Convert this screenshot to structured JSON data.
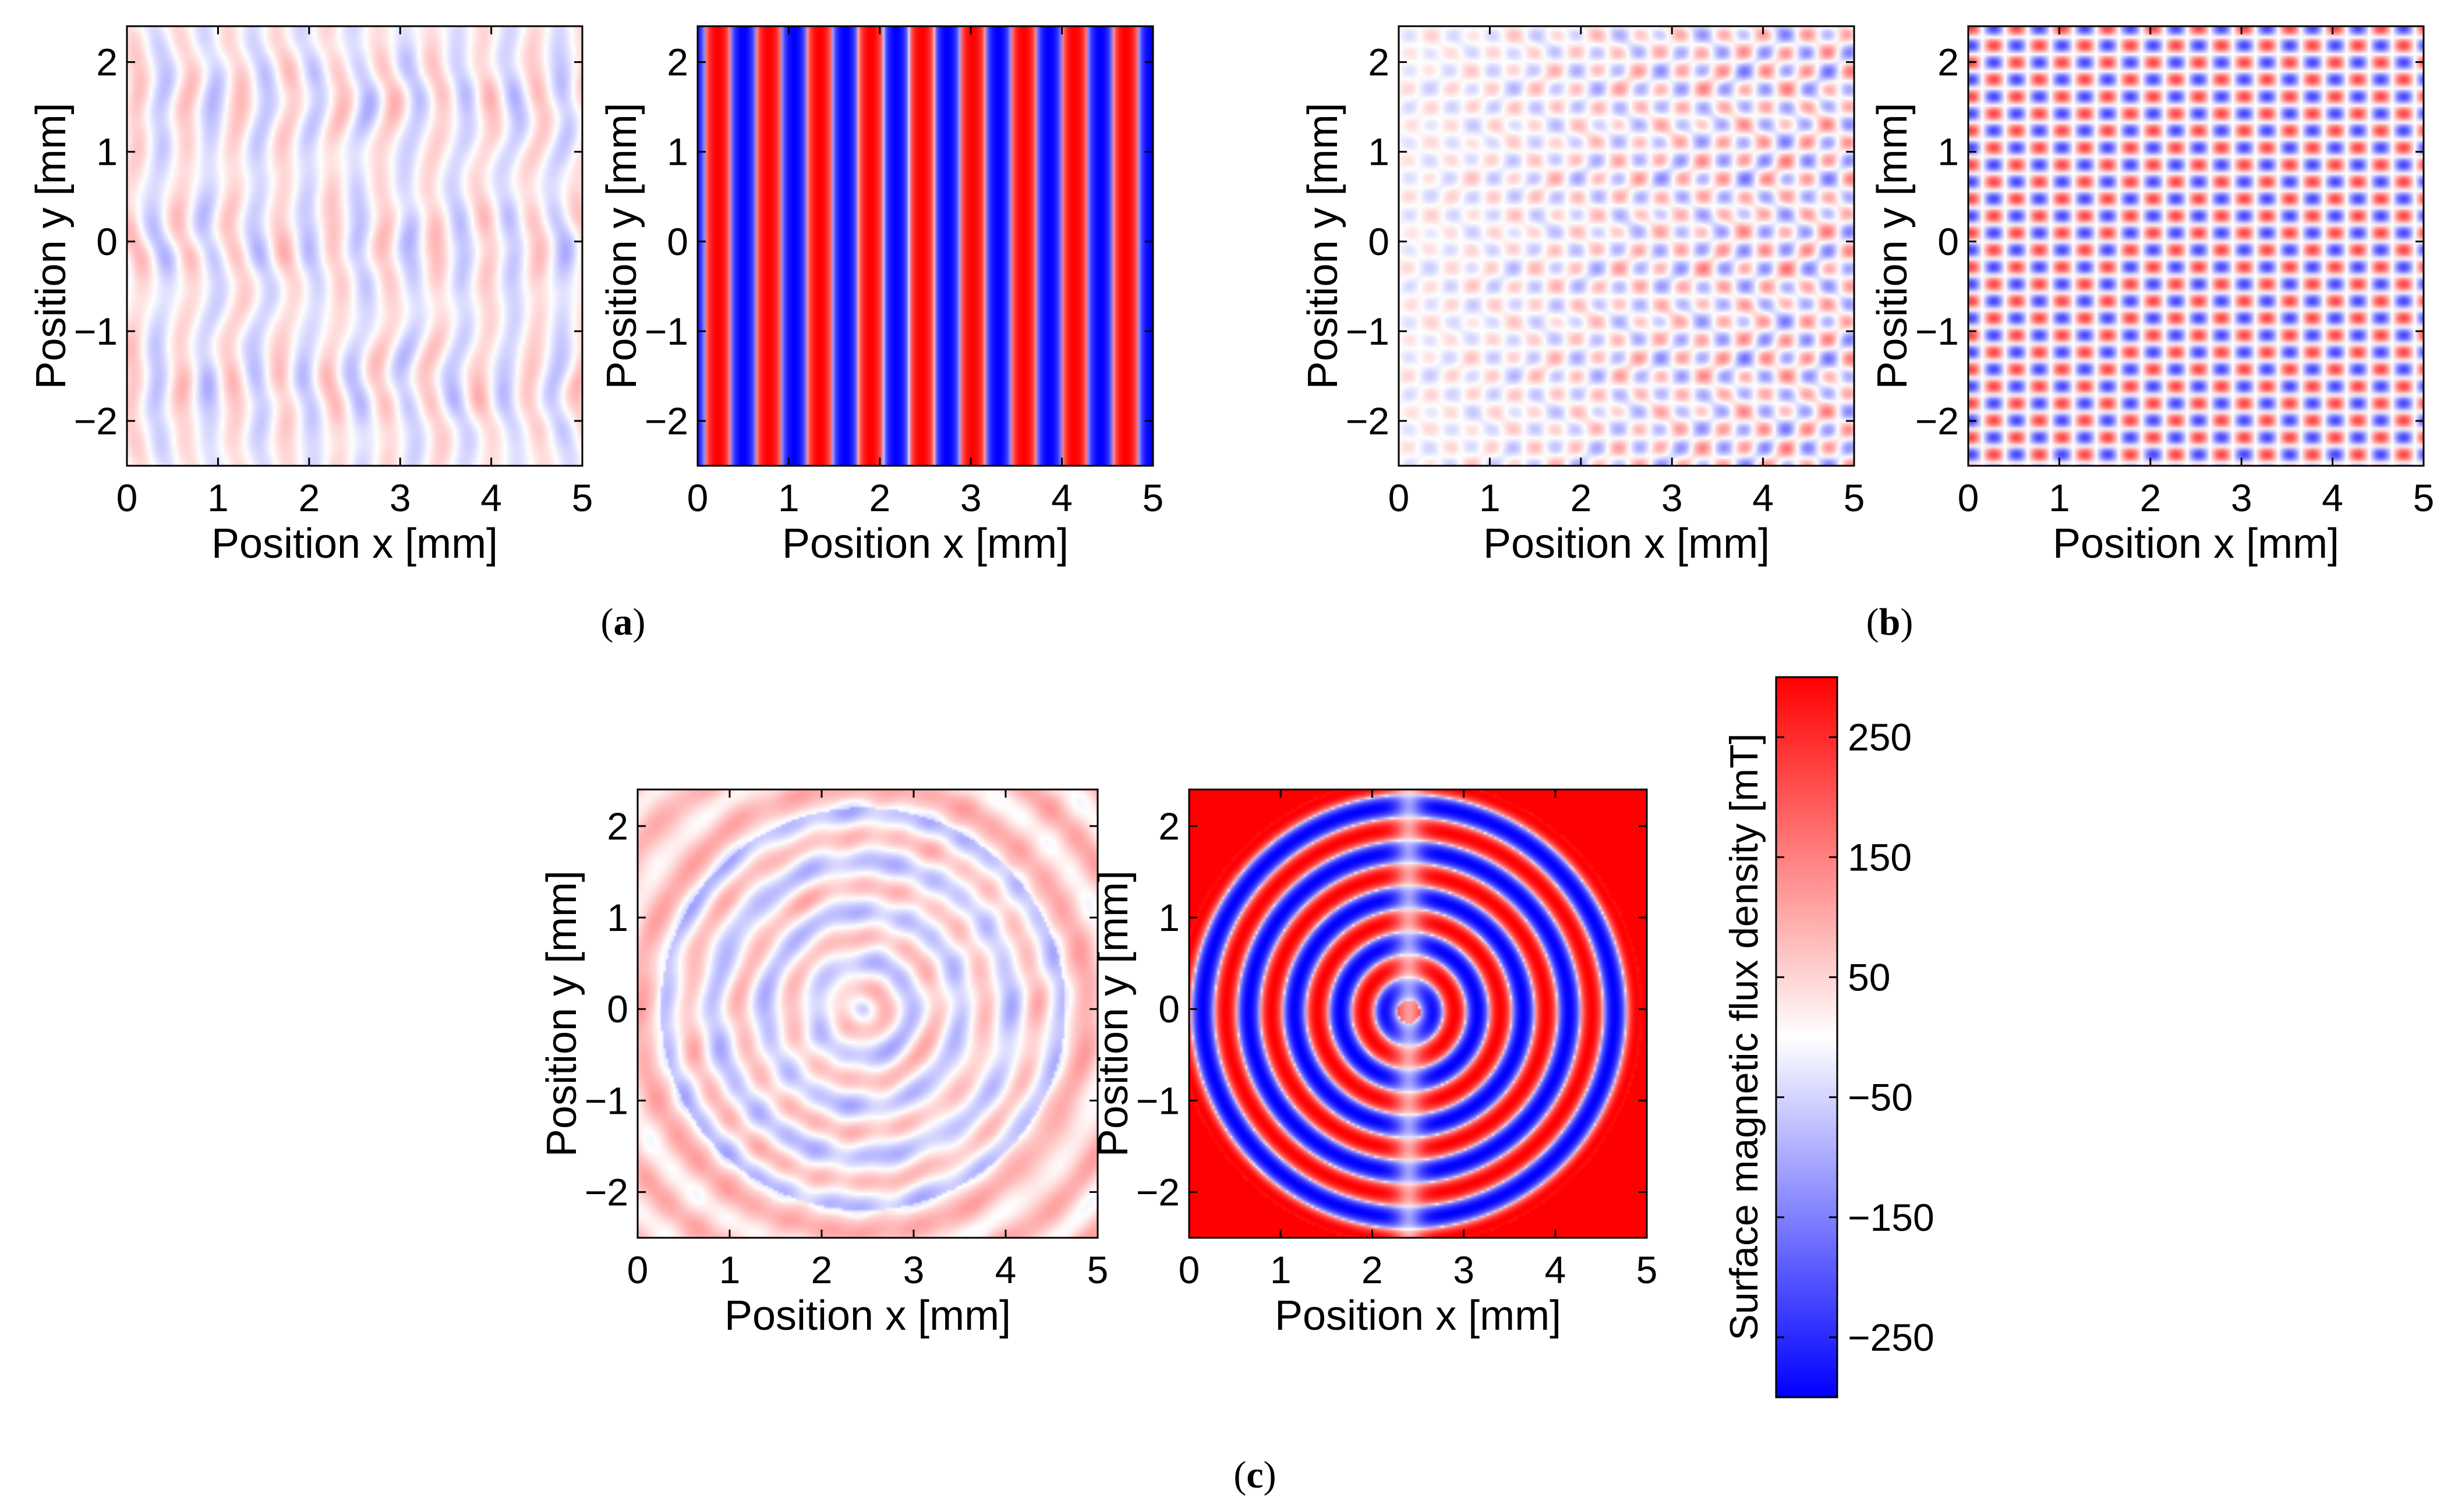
{
  "chart_data": [
    {
      "type": "heatmap",
      "name": "a-measured",
      "group": "a",
      "pattern": "stripes-measured",
      "xlabel": "Position x [mm]",
      "ylabel": "Position y [mm]",
      "xlim": [
        0,
        5
      ],
      "ylim": [
        -2.5,
        2.4
      ],
      "xticks": [
        0,
        1,
        2,
        3,
        4,
        5
      ],
      "yticks": [
        -2,
        -1,
        0,
        1,
        2
      ],
      "amplitude_mT": 90
    },
    {
      "type": "heatmap",
      "name": "a-simulated",
      "group": "a",
      "pattern": "stripes-ideal",
      "xlabel": "Position x [mm]",
      "ylabel": "Position y [mm]",
      "xlim": [
        0,
        5
      ],
      "ylim": [
        -2.5,
        2.4
      ],
      "xticks": [
        0,
        1,
        2,
        3,
        4,
        5
      ],
      "yticks": [
        -2,
        -1,
        0,
        1,
        2
      ],
      "amplitude_mT": 300
    },
    {
      "type": "heatmap",
      "name": "b-measured",
      "group": "b",
      "pattern": "checker-measured",
      "xlabel": "Position x [mm]",
      "ylabel": "Position y [mm]",
      "xlim": [
        0,
        5
      ],
      "ylim": [
        -2.5,
        2.4
      ],
      "xticks": [
        0,
        1,
        2,
        3,
        4,
        5
      ],
      "yticks": [
        -2,
        -1,
        0,
        1,
        2
      ],
      "amplitude_mT": 150
    },
    {
      "type": "heatmap",
      "name": "b-simulated",
      "group": "b",
      "pattern": "checker-ideal",
      "xlabel": "Position x [mm]",
      "ylabel": "Position y [mm]",
      "xlim": [
        0,
        5
      ],
      "ylim": [
        -2.5,
        2.4
      ],
      "xticks": [
        0,
        1,
        2,
        3,
        4,
        5
      ],
      "yticks": [
        -2,
        -1,
        0,
        1,
        2
      ],
      "amplitude_mT": 220
    },
    {
      "type": "heatmap",
      "name": "c-measured",
      "group": "c",
      "pattern": "rings-measured",
      "xlabel": "Position x [mm]",
      "ylabel": "Position y [mm]",
      "xlim": [
        0,
        5
      ],
      "ylim": [
        -2.5,
        2.4
      ],
      "xticks": [
        0,
        1,
        2,
        3,
        4,
        5
      ],
      "yticks": [
        -2,
        -1,
        0,
        1,
        2
      ],
      "amplitude_mT": 100
    },
    {
      "type": "heatmap",
      "name": "c-simulated",
      "group": "c",
      "pattern": "rings-ideal",
      "xlabel": "Position x [mm]",
      "ylabel": "Position y [mm]",
      "xlim": [
        0,
        5
      ],
      "ylim": [
        -2.5,
        2.4
      ],
      "xticks": [
        0,
        1,
        2,
        3,
        4,
        5
      ],
      "yticks": [
        -2,
        -1,
        0,
        1,
        2
      ],
      "amplitude_mT": 300
    }
  ],
  "colorbar": {
    "title": "Surface magnetic flux density [mT]",
    "range": [
      -300,
      300
    ],
    "ticks": [
      250,
      150,
      50,
      -50,
      -150,
      -250
    ],
    "tick_labels": [
      "250",
      "150",
      "50",
      "−50",
      "−150",
      "−250"
    ],
    "colors": {
      "low": "#0000ff",
      "mid": "#ffffff",
      "high": "#ff0000"
    }
  },
  "panel_labels": {
    "a": {
      "open": "(",
      "letter": "a",
      "close": ")"
    },
    "b": {
      "open": "(",
      "letter": "b",
      "close": ")"
    },
    "c": {
      "open": "(",
      "letter": "c",
      "close": ")"
    }
  }
}
